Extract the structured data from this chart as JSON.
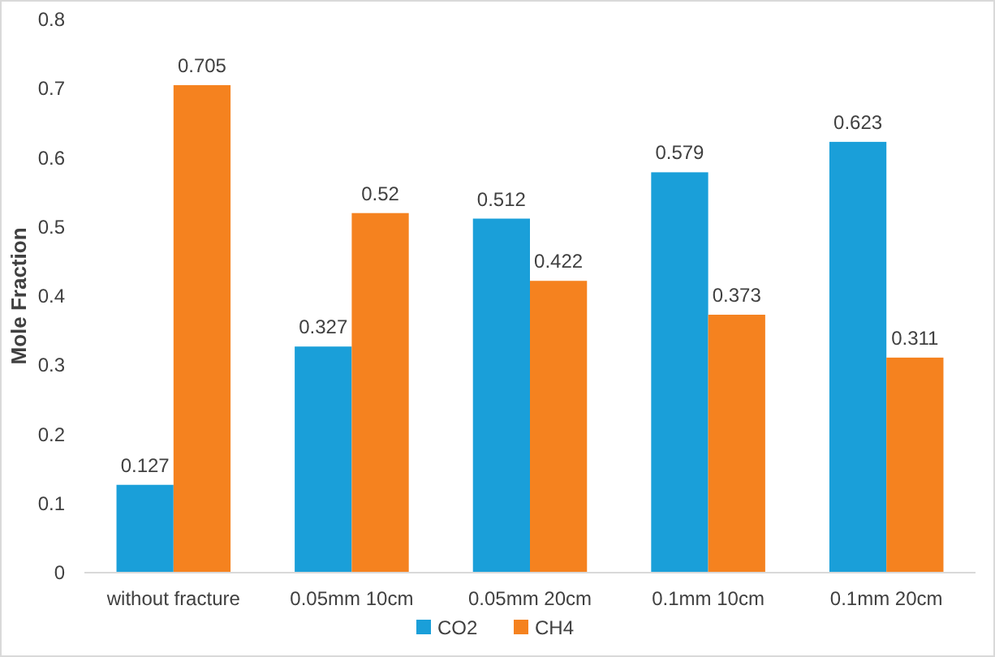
{
  "chart_data": {
    "type": "bar",
    "ylabel": "Mole Fraction",
    "categories": [
      "without fracture",
      "0.05mm 10cm",
      "0.05mm 20cm",
      "0.1mm 10cm",
      "0.1mm 20cm"
    ],
    "series": [
      {
        "name": "CO2",
        "color": "#1a9fd9",
        "values": [
          0.127,
          0.327,
          0.512,
          0.579,
          0.623
        ]
      },
      {
        "name": "CH4",
        "color": "#f5821f",
        "values": [
          0.705,
          0.52,
          0.422,
          0.373,
          0.311
        ]
      }
    ],
    "ylim": [
      0,
      0.8
    ],
    "yticks": [
      0,
      0.1,
      0.2,
      0.3,
      0.4,
      0.5,
      0.6,
      0.7,
      0.8
    ],
    "data_labels": true,
    "legend": "bottom",
    "grid": false
  }
}
